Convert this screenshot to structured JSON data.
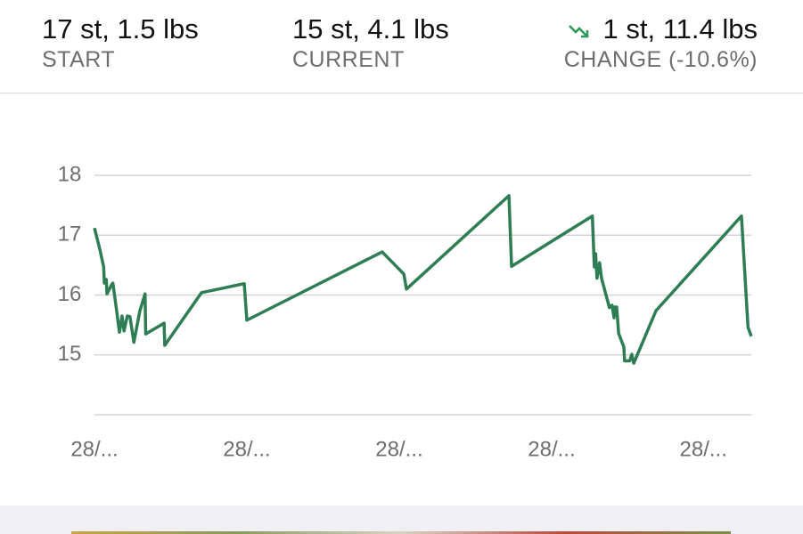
{
  "header": {
    "start": {
      "value": "17 st, 1.5 lbs",
      "label": "START"
    },
    "current": {
      "value": "15 st, 4.1 lbs",
      "label": "CURRENT"
    },
    "change": {
      "value": "1 st, 11.4 lbs",
      "label": "CHANGE (-10.6%)"
    }
  },
  "chart_data": {
    "type": "line",
    "color": "#2e7d55",
    "x": [
      0,
      0.8,
      1.4,
      1.5,
      1.8,
      1.9,
      2.6,
      2.8,
      3.3,
      3.8,
      4.2,
      4.5,
      5.0,
      5.4,
      6.0,
      6.9,
      7.7,
      7.8,
      10.6,
      10.7,
      16.3,
      22.8,
      23.2,
      43.8,
      47.1,
      47.5,
      63.1,
      63.5,
      75.8,
      76.1,
      76.3,
      76.5,
      76.9,
      77.2,
      78.4,
      78.8,
      79.1,
      79.2,
      79.5,
      79.8,
      80.6,
      80.7,
      81.5,
      81.8,
      82.1,
      85.5,
      98.5,
      99.5,
      100
    ],
    "values": [
      17.12,
      16.77,
      16.47,
      16.2,
      16.26,
      16.02,
      16.17,
      16.2,
      15.8,
      15.38,
      15.65,
      15.4,
      15.65,
      15.64,
      15.21,
      15.73,
      16.02,
      15.35,
      15.53,
      15.16,
      16.04,
      16.19,
      15.58,
      16.72,
      16.35,
      16.1,
      17.66,
      16.48,
      17.32,
      16.47,
      16.69,
      16.28,
      16.54,
      16.28,
      15.79,
      15.83,
      15.62,
      15.8,
      15.8,
      15.36,
      15.13,
      14.9,
      14.9,
      15.01,
      14.86,
      15.74,
      17.32,
      15.46,
      15.31
    ],
    "xlim": [
      0,
      100
    ],
    "xticks": [
      {
        "value": 0,
        "label": "28/..."
      },
      {
        "value": 23.2,
        "label": "28/..."
      },
      {
        "value": 46.4,
        "label": "28/..."
      },
      {
        "value": 69.6,
        "label": "28/..."
      },
      {
        "value": 92.7,
        "label": "28/..."
      }
    ],
    "ylim": [
      14,
      18
    ],
    "yticks": [
      15,
      16,
      17,
      18
    ],
    "grid": true
  }
}
